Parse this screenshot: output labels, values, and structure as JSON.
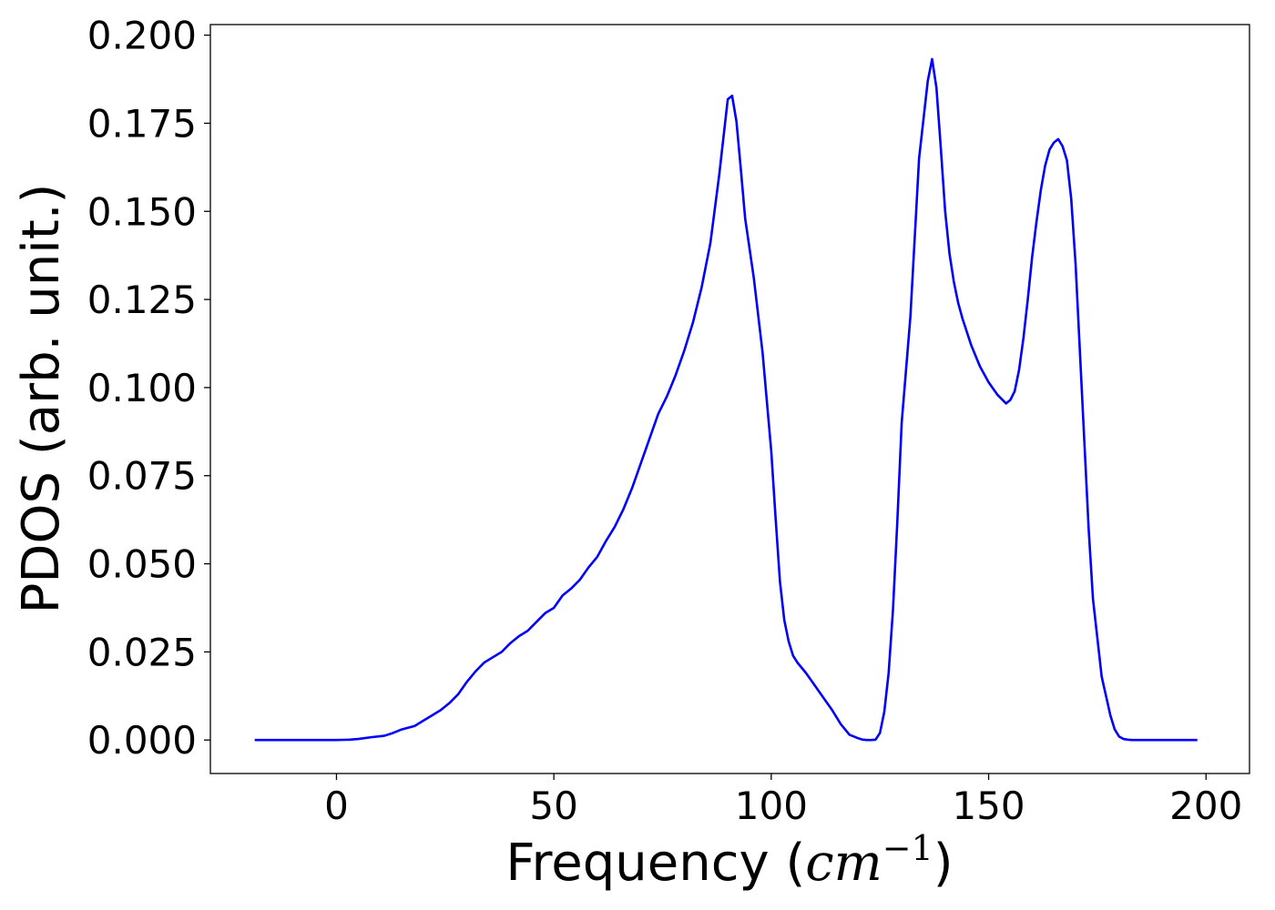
{
  "chart_data": {
    "type": "line",
    "title": "",
    "xlabel": {
      "prefix": "Frequency (",
      "unit_base": "cm",
      "unit_exp": "−1",
      "suffix": ")"
    },
    "ylabel": "PDOS (arb. unit.)",
    "xlim": [
      -29,
      210
    ],
    "ylim": [
      -0.0095,
      0.203
    ],
    "xticks": [
      0,
      50,
      100,
      150,
      200
    ],
    "xtick_labels": [
      "0",
      "50",
      "100",
      "150",
      "200"
    ],
    "yticks": [
      0.0,
      0.025,
      0.05,
      0.075,
      0.1,
      0.125,
      0.15,
      0.175,
      0.2
    ],
    "ytick_labels": [
      "0.000",
      "0.025",
      "0.050",
      "0.075",
      "0.100",
      "0.125",
      "0.150",
      "0.175",
      "0.200"
    ],
    "grid": false,
    "legend": "none",
    "series": [
      {
        "color": "#0000ff",
        "x": [
          -18.8,
          0,
          3,
          5,
          8,
          11,
          13,
          15,
          18,
          20,
          22,
          24,
          26,
          28,
          30,
          32,
          34,
          36,
          38,
          40,
          42,
          44,
          46,
          48,
          50,
          52,
          54,
          56,
          58,
          60,
          62,
          64,
          66,
          68,
          70,
          72,
          74,
          76,
          78,
          80,
          82,
          84,
          86,
          88,
          90,
          91,
          92,
          93,
          94,
          96,
          98,
          100,
          101,
          102,
          103,
          104,
          105,
          106,
          108,
          110,
          112,
          114,
          116,
          118,
          120,
          121,
          122,
          123,
          124,
          125,
          126,
          127,
          128,
          129,
          130,
          132,
          134,
          136,
          137,
          138,
          139,
          140,
          141,
          142,
          143,
          144,
          146,
          148,
          150,
          152,
          154,
          155,
          156,
          157,
          158,
          159,
          160,
          161,
          162,
          163,
          164,
          165,
          166,
          167,
          168,
          169,
          170,
          171,
          172,
          173,
          174,
          176,
          178,
          179,
          180,
          181,
          182,
          183,
          185,
          190,
          198
        ],
        "y": [
          0.0,
          0.0,
          0.0001,
          0.0003,
          0.0008,
          0.0012,
          0.002,
          0.003,
          0.004,
          0.0055,
          0.007,
          0.0085,
          0.0105,
          0.013,
          0.0165,
          0.0195,
          0.022,
          0.0235,
          0.025,
          0.0275,
          0.0295,
          0.031,
          0.0335,
          0.036,
          0.0375,
          0.041,
          0.043,
          0.0455,
          0.049,
          0.052,
          0.0565,
          0.0605,
          0.0655,
          0.0715,
          0.0785,
          0.0855,
          0.0925,
          0.0975,
          0.1035,
          0.1105,
          0.1185,
          0.1285,
          0.141,
          0.16,
          0.1818,
          0.1828,
          0.1755,
          0.162,
          0.148,
          0.131,
          0.11,
          0.082,
          0.063,
          0.045,
          0.034,
          0.028,
          0.024,
          0.022,
          0.019,
          0.0155,
          0.012,
          0.0085,
          0.0045,
          0.0015,
          0.0005,
          0.0001,
          0.0,
          0.0,
          0.0001,
          0.002,
          0.008,
          0.019,
          0.037,
          0.062,
          0.09,
          0.12,
          0.165,
          0.187,
          0.1932,
          0.185,
          0.168,
          0.15,
          0.138,
          0.13,
          0.124,
          0.1195,
          0.112,
          0.106,
          0.1015,
          0.098,
          0.0955,
          0.0965,
          0.099,
          0.105,
          0.114,
          0.125,
          0.137,
          0.147,
          0.156,
          0.163,
          0.1675,
          0.1695,
          0.1705,
          0.1685,
          0.1645,
          0.1535,
          0.135,
          0.11,
          0.085,
          0.06,
          0.04,
          0.018,
          0.007,
          0.003,
          0.001,
          0.0003,
          0.0001,
          0.0,
          0.0,
          0.0,
          0.0
        ]
      }
    ]
  }
}
